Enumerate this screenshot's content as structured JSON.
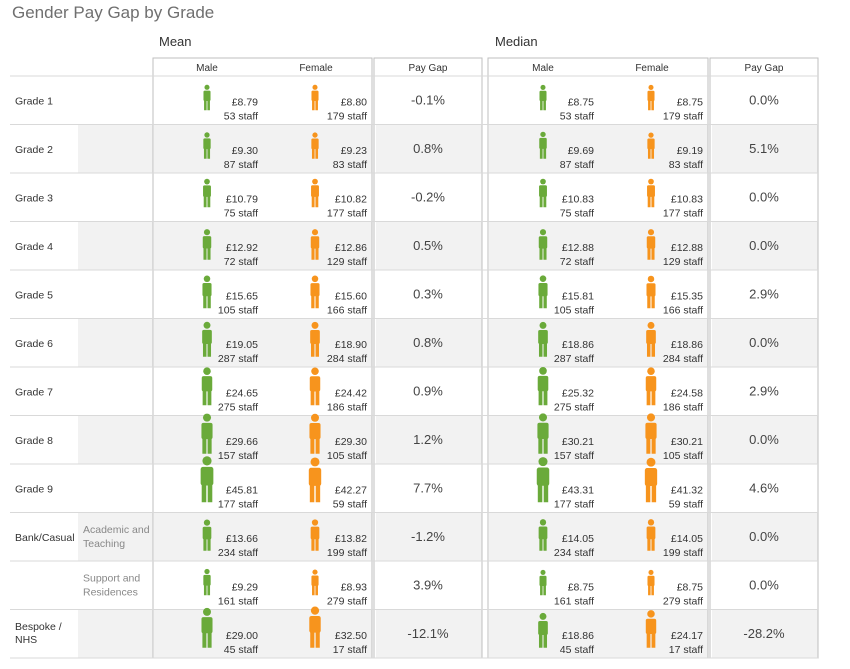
{
  "title": "Gender Pay Gap by Grade",
  "sections": {
    "mean": "Mean",
    "median": "Median"
  },
  "column_headers": {
    "male": "Male",
    "female": "Female",
    "pay_gap": "Pay Gap"
  },
  "colors": {
    "male": "#6aaa3a",
    "female": "#f7941d",
    "shade": "#f2f2f2",
    "grid": "#d9d9d9",
    "panel_border": "#bfbfbf"
  },
  "chart_data": {
    "type": "table",
    "encoding": "figure size scales with pay value",
    "rows": [
      {
        "label": "Grade 1",
        "sublabel": "",
        "mean": {
          "male": "£8.79",
          "male_staff": "53 staff",
          "female": "£8.80",
          "female_staff": "179 staff",
          "gap": "-0.1%"
        },
        "median": {
          "male": "£8.75",
          "male_staff": "53 staff",
          "female": "£8.75",
          "female_staff": "179 staff",
          "gap": "0.0%"
        }
      },
      {
        "label": "Grade 2",
        "sublabel": "",
        "mean": {
          "male": "£9.30",
          "male_staff": "87 staff",
          "female": "£9.23",
          "female_staff": "83 staff",
          "gap": "0.8%"
        },
        "median": {
          "male": "£9.69",
          "male_staff": "87 staff",
          "female": "£9.19",
          "female_staff": "83 staff",
          "gap": "5.1%"
        }
      },
      {
        "label": "Grade 3",
        "sublabel": "",
        "mean": {
          "male": "£10.79",
          "male_staff": "75 staff",
          "female": "£10.82",
          "female_staff": "177 staff",
          "gap": "-0.2%"
        },
        "median": {
          "male": "£10.83",
          "male_staff": "75 staff",
          "female": "£10.83",
          "female_staff": "177 staff",
          "gap": "0.0%"
        }
      },
      {
        "label": "Grade 4",
        "sublabel": "",
        "mean": {
          "male": "£12.92",
          "male_staff": "72 staff",
          "female": "£12.86",
          "female_staff": "129 staff",
          "gap": "0.5%"
        },
        "median": {
          "male": "£12.88",
          "male_staff": "72 staff",
          "female": "£12.88",
          "female_staff": "129 staff",
          "gap": "0.0%"
        }
      },
      {
        "label": "Grade 5",
        "sublabel": "",
        "mean": {
          "male": "£15.65",
          "male_staff": "105 staff",
          "female": "£15.60",
          "female_staff": "166 staff",
          "gap": "0.3%"
        },
        "median": {
          "male": "£15.81",
          "male_staff": "105 staff",
          "female": "£15.35",
          "female_staff": "166 staff",
          "gap": "2.9%"
        }
      },
      {
        "label": "Grade 6",
        "sublabel": "",
        "mean": {
          "male": "£19.05",
          "male_staff": "287 staff",
          "female": "£18.90",
          "female_staff": "284 staff",
          "gap": "0.8%"
        },
        "median": {
          "male": "£18.86",
          "male_staff": "287 staff",
          "female": "£18.86",
          "female_staff": "284 staff",
          "gap": "0.0%"
        }
      },
      {
        "label": "Grade 7",
        "sublabel": "",
        "mean": {
          "male": "£24.65",
          "male_staff": "275 staff",
          "female": "£24.42",
          "female_staff": "186 staff",
          "gap": "0.9%"
        },
        "median": {
          "male": "£25.32",
          "male_staff": "275 staff",
          "female": "£24.58",
          "female_staff": "186 staff",
          "gap": "2.9%"
        }
      },
      {
        "label": "Grade 8",
        "sublabel": "",
        "mean": {
          "male": "£29.66",
          "male_staff": "157 staff",
          "female": "£29.30",
          "female_staff": "105 staff",
          "gap": "1.2%"
        },
        "median": {
          "male": "£30.21",
          "male_staff": "157 staff",
          "female": "£30.21",
          "female_staff": "105 staff",
          "gap": "0.0%"
        }
      },
      {
        "label": "Grade 9",
        "sublabel": "",
        "mean": {
          "male": "£45.81",
          "male_staff": "177 staff",
          "female": "£42.27",
          "female_staff": "59 staff",
          "gap": "7.7%"
        },
        "median": {
          "male": "£43.31",
          "male_staff": "177 staff",
          "female": "£41.32",
          "female_staff": "59 staff",
          "gap": "4.6%"
        }
      },
      {
        "label": "Bank/Casual",
        "sublabel": "Academic and Teaching",
        "mean": {
          "male": "£13.66",
          "male_staff": "234 staff",
          "female": "£13.82",
          "female_staff": "199 staff",
          "gap": "-1.2%"
        },
        "median": {
          "male": "£14.05",
          "male_staff": "234 staff",
          "female": "£14.05",
          "female_staff": "199 staff",
          "gap": "0.0%"
        }
      },
      {
        "label": "",
        "sublabel": "Support and Residences",
        "mean": {
          "male": "£9.29",
          "male_staff": "161 staff",
          "female": "£8.93",
          "female_staff": "279 staff",
          "gap": "3.9%"
        },
        "median": {
          "male": "£8.75",
          "male_staff": "161 staff",
          "female": "£8.75",
          "female_staff": "279 staff",
          "gap": "0.0%"
        }
      },
      {
        "label": "Bespoke / NHS",
        "sublabel": "",
        "mean": {
          "male": "£29.00",
          "male_staff": "45 staff",
          "female": "£32.50",
          "female_staff": "17 staff",
          "gap": "-12.1%"
        },
        "median": {
          "male": "£18.86",
          "male_staff": "45 staff",
          "female": "£24.17",
          "female_staff": "17 staff",
          "gap": "-28.2%"
        }
      }
    ]
  }
}
